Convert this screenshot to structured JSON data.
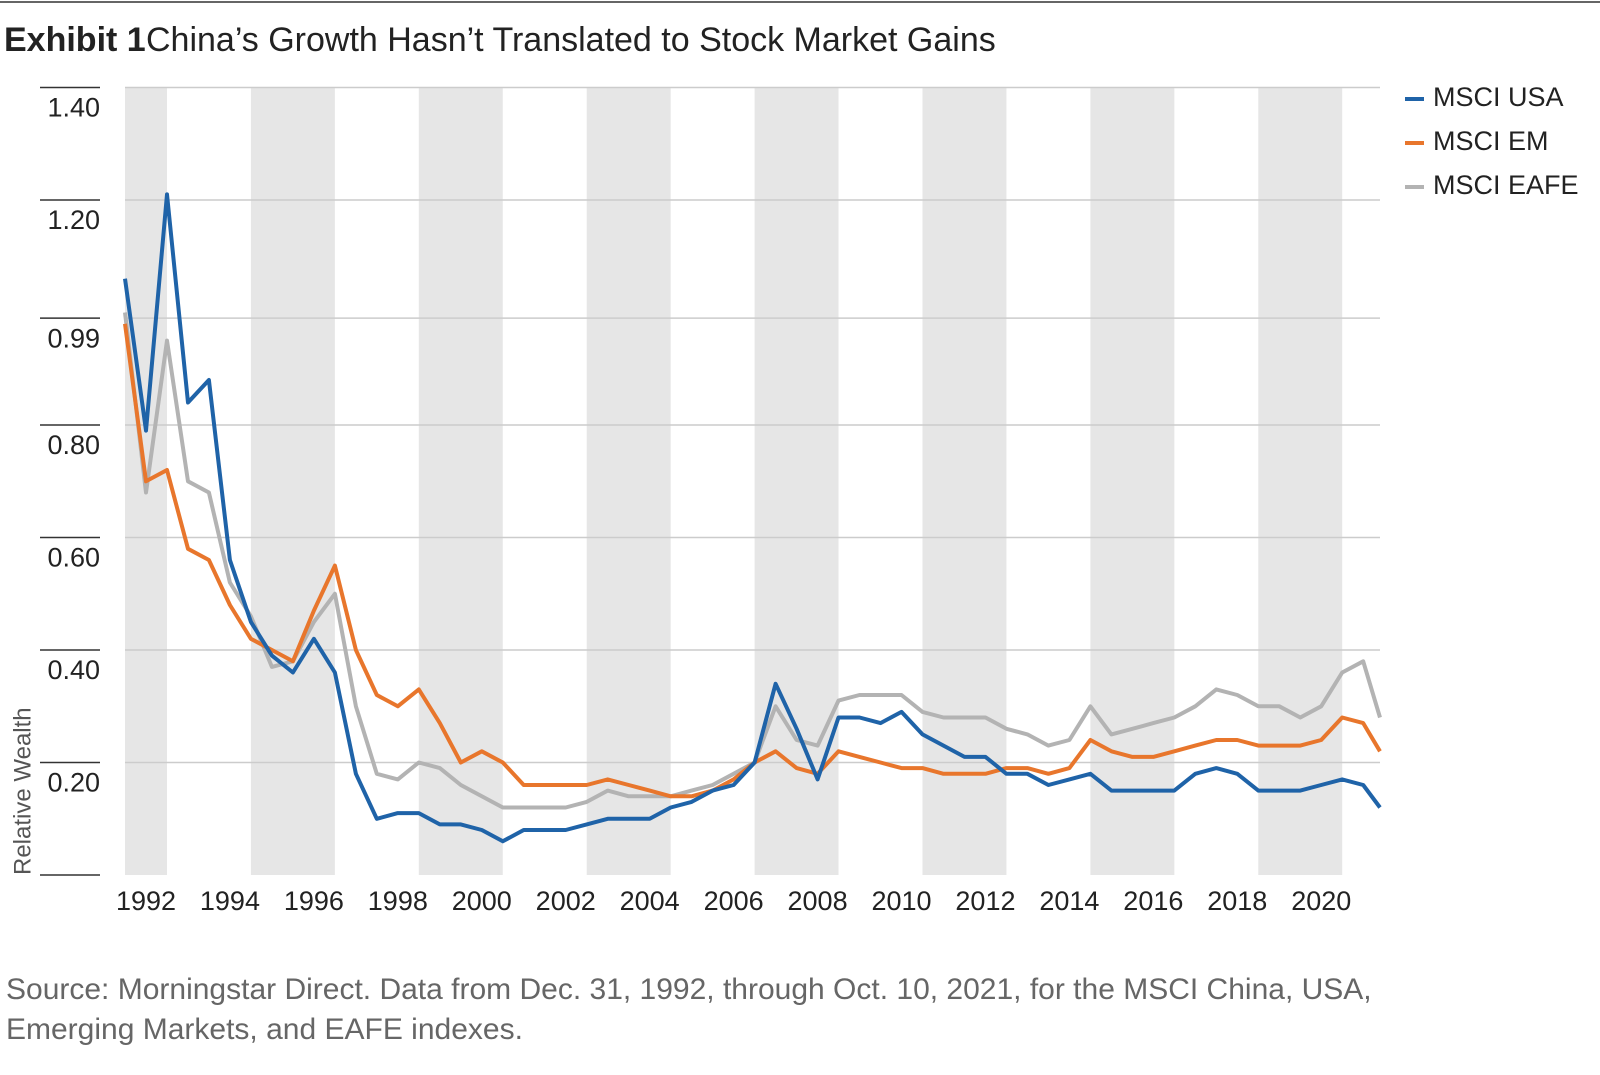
{
  "chart_data": {
    "type": "line",
    "exhibit": "Exhibit 1",
    "title": "China’s Growth Hasn’t Translated to Stock Market Gains",
    "y_label": "Relative Wealth",
    "source": "Source: Morningstar Direct. Data from Dec. 31, 1992, through Oct. 10, 2021, for the MSCI China, USA, Emerging Markets, and EAFE indexes.",
    "x": [
      1991.5,
      1992,
      1992.5,
      1993,
      1993.5,
      1994,
      1994.5,
      1995,
      1995.5,
      1996,
      1996.5,
      1997,
      1997.5,
      1998,
      1998.5,
      1999,
      1999.5,
      2000,
      2000.5,
      2001,
      2001.5,
      2002,
      2002.5,
      2003,
      2003.5,
      2004,
      2004.5,
      2005,
      2005.5,
      2006,
      2006.5,
      2007,
      2007.5,
      2008,
      2008.5,
      2009,
      2009.5,
      2010,
      2010.5,
      2011,
      2011.5,
      2012,
      2012.5,
      2013,
      2013.5,
      2014,
      2014.5,
      2015,
      2015.5,
      2016,
      2016.5,
      2017,
      2017.5,
      2018,
      2018.5,
      2019,
      2019.5,
      2020,
      2020.5,
      2021,
      2021.4
    ],
    "series": [
      {
        "name": "MSCI USA",
        "color": "#1f63a8",
        "values": [
          1.06,
          0.79,
          1.21,
          0.84,
          0.88,
          0.56,
          0.45,
          0.39,
          0.36,
          0.42,
          0.36,
          0.18,
          0.1,
          0.11,
          0.11,
          0.09,
          0.09,
          0.08,
          0.06,
          0.08,
          0.08,
          0.08,
          0.09,
          0.1,
          0.1,
          0.1,
          0.12,
          0.13,
          0.15,
          0.16,
          0.2,
          0.34,
          0.26,
          0.17,
          0.28,
          0.28,
          0.27,
          0.29,
          0.25,
          0.23,
          0.21,
          0.21,
          0.18,
          0.18,
          0.16,
          0.17,
          0.18,
          0.15,
          0.15,
          0.15,
          0.15,
          0.18,
          0.19,
          0.18,
          0.15,
          0.15,
          0.15,
          0.16,
          0.17,
          0.16,
          0.12
        ]
      },
      {
        "name": "MSCI EM",
        "color": "#e8762c",
        "values": [
          0.98,
          0.7,
          0.72,
          0.58,
          0.56,
          0.48,
          0.42,
          0.4,
          0.38,
          0.47,
          0.55,
          0.4,
          0.32,
          0.3,
          0.33,
          0.27,
          0.2,
          0.22,
          0.2,
          0.16,
          0.16,
          0.16,
          0.16,
          0.17,
          0.16,
          0.15,
          0.14,
          0.14,
          0.15,
          0.17,
          0.2,
          0.22,
          0.19,
          0.18,
          0.22,
          0.21,
          0.2,
          0.19,
          0.19,
          0.18,
          0.18,
          0.18,
          0.19,
          0.19,
          0.18,
          0.19,
          0.24,
          0.22,
          0.21,
          0.21,
          0.22,
          0.23,
          0.24,
          0.24,
          0.23,
          0.23,
          0.23,
          0.24,
          0.28,
          0.27,
          0.22
        ]
      },
      {
        "name": "MSCI EAFE",
        "color": "#b3b3b3",
        "values": [
          1.0,
          0.68,
          0.95,
          0.7,
          0.68,
          0.52,
          0.46,
          0.37,
          0.38,
          0.45,
          0.5,
          0.3,
          0.18,
          0.17,
          0.2,
          0.19,
          0.16,
          0.14,
          0.12,
          0.12,
          0.12,
          0.12,
          0.13,
          0.15,
          0.14,
          0.14,
          0.14,
          0.15,
          0.16,
          0.18,
          0.2,
          0.3,
          0.24,
          0.23,
          0.31,
          0.32,
          0.32,
          0.32,
          0.29,
          0.28,
          0.28,
          0.28,
          0.26,
          0.25,
          0.23,
          0.24,
          0.3,
          0.25,
          0.26,
          0.27,
          0.28,
          0.3,
          0.33,
          0.32,
          0.3,
          0.3,
          0.28,
          0.3,
          0.36,
          0.38,
          0.28
        ]
      }
    ],
    "xlim": [
      1991.5,
      2021.4
    ],
    "xticks": [
      1992,
      1994,
      1996,
      1998,
      2000,
      2002,
      2004,
      2006,
      2008,
      2010,
      2012,
      2014,
      2016,
      2018,
      2020
    ],
    "ylim": [
      0,
      1.4
    ],
    "yticks": [
      {
        "value": 1.4,
        "label": "1.40"
      },
      {
        "value": 1.2,
        "label": "1.20"
      },
      {
        "value": 0.99,
        "label": "0.99"
      },
      {
        "value": 0.8,
        "label": "0.80"
      },
      {
        "value": 0.6,
        "label": "0.60"
      },
      {
        "value": 0.4,
        "label": "0.40"
      },
      {
        "value": 0.2,
        "label": "0.20"
      }
    ],
    "grid": true,
    "band_color": "#e6e6e6",
    "legend": "top-right"
  }
}
